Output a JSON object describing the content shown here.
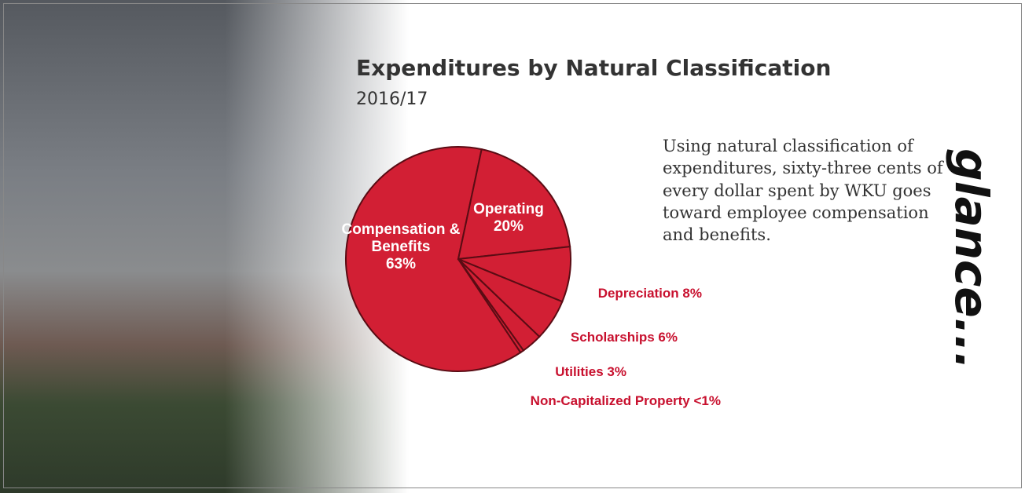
{
  "chart_data": {
    "type": "pie",
    "title": "Expenditures by Natural Classification",
    "subtitle": "2016/17",
    "categories": [
      "Compensation & Benefits",
      "Operating",
      "Depreciation",
      "Scholarships",
      "Utilities",
      "Non-Capitalized Property"
    ],
    "values": [
      63,
      20,
      8,
      6,
      3,
      0.5
    ],
    "value_labels": [
      "63%",
      "20%",
      "8%",
      "6%",
      "3%",
      "<1%"
    ],
    "color": "#d21f34",
    "annotation": "Using natural classification of expenditures, sixty-three cents of every dollar spent by WKU goes toward employee compensation and benefits."
  },
  "side_label": "glance..."
}
